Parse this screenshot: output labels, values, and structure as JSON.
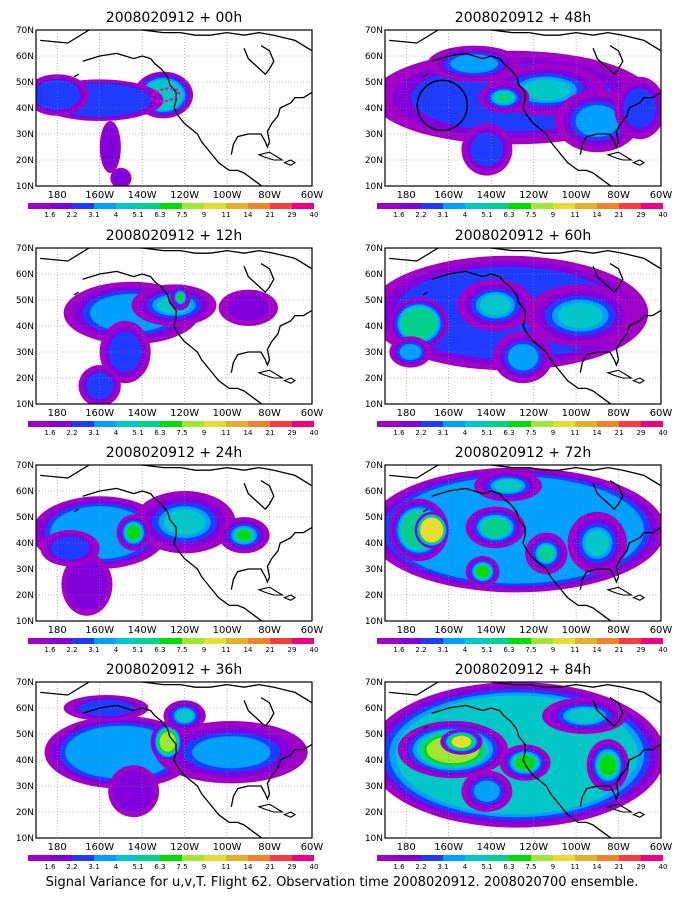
{
  "figure": {
    "caption": "Signal Variance for u,v,T. Flight 62. Observation time 2008020912. 2008020700 ensemble."
  },
  "chart_data": {
    "type": "heatmap",
    "map": {
      "x_ticks": [
        "180",
        "160W",
        "140W",
        "120W",
        "100W",
        "80W",
        "60W"
      ],
      "y_ticks": [
        "70N",
        "60N",
        "50N",
        "40N",
        "30N",
        "20N",
        "10N"
      ],
      "lon_range": [
        170,
        300
      ],
      "lat_range": [
        10,
        70
      ],
      "grid": "dotted"
    },
    "colorbar": {
      "levels": [
        "1.6",
        "2.2",
        "3.1",
        "4",
        "5.1",
        "6.3",
        "7.5",
        "9",
        "11",
        "14",
        "21",
        "29",
        "40"
      ],
      "colors": [
        "#a000c8",
        "#8200dc",
        "#1e3cff",
        "#00a0ff",
        "#00c8c8",
        "#00d28c",
        "#00dc00",
        "#a0e632",
        "#e6dc32",
        "#e6af2d",
        "#f08228",
        "#fa3c3c",
        "#f00082"
      ]
    },
    "panels": [
      {
        "title": "2008020912 + 00h",
        "blobs": [
          [
            230,
            45,
            6,
            6,
            0.95,
            7
          ],
          [
            230,
            45,
            14,
            9,
            0.9,
            4
          ],
          [
            200,
            43,
            30,
            8,
            0.9,
            2
          ],
          [
            180,
            45,
            15,
            8,
            0.85,
            2
          ],
          [
            205,
            25,
            5,
            10,
            0.85,
            1
          ],
          [
            210,
            13,
            5,
            4,
            0.8,
            1
          ]
        ],
        "outline": "ellipse"
      },
      {
        "title": "2008020912 + 12h",
        "blobs": [
          [
            215,
            45,
            32,
            12,
            0.85,
            3
          ],
          [
            235,
            48,
            20,
            8,
            0.8,
            4
          ],
          [
            212,
            30,
            12,
            12,
            0.8,
            2
          ],
          [
            200,
            17,
            10,
            8,
            0.8,
            2
          ],
          [
            270,
            47,
            14,
            7,
            0.7,
            1
          ],
          [
            238,
            51,
            5,
            5,
            0.8,
            6
          ]
        ],
        "outline": ""
      },
      {
        "title": "2008020912 + 24h",
        "blobs": [
          [
            200,
            44,
            32,
            14,
            0.9,
            3
          ],
          [
            240,
            48,
            24,
            12,
            0.8,
            4
          ],
          [
            216,
            44,
            8,
            7,
            0.85,
            6
          ],
          [
            268,
            43,
            12,
            7,
            0.8,
            6
          ],
          [
            194,
            24,
            12,
            12,
            0.8,
            1
          ],
          [
            186,
            38,
            14,
            7,
            0.8,
            2
          ]
        ],
        "outline": ""
      },
      {
        "title": "2008020912 + 36h",
        "blobs": [
          [
            210,
            43,
            36,
            14,
            0.9,
            3
          ],
          [
            262,
            43,
            36,
            12,
            0.8,
            3
          ],
          [
            232,
            47,
            8,
            8,
            0.9,
            7
          ],
          [
            216,
            28,
            12,
            10,
            0.8,
            1
          ],
          [
            240,
            57,
            10,
            6,
            0.8,
            4
          ],
          [
            203,
            60,
            20,
            5,
            0.8,
            2
          ]
        ],
        "outline": ""
      },
      {
        "title": "2008020912 + 48h",
        "blobs": [
          [
            230,
            44,
            66,
            18,
            0.85,
            2
          ],
          [
            246,
            47,
            28,
            10,
            0.8,
            4
          ],
          [
            226,
            44,
            12,
            6,
            0.8,
            5
          ],
          [
            270,
            35,
            20,
            12,
            0.8,
            3
          ],
          [
            218,
            24,
            12,
            10,
            0.8,
            2
          ],
          [
            290,
            40,
            12,
            12,
            0.8,
            2
          ],
          [
            212,
            57,
            22,
            7,
            0.8,
            3
          ]
        ],
        "outline": "circle"
      },
      {
        "title": "2008020912 + 60h",
        "blobs": [
          [
            228,
            45,
            66,
            22,
            0.9,
            2
          ],
          [
            186,
            41,
            14,
            10,
            0.9,
            5
          ],
          [
            262,
            44,
            26,
            12,
            0.8,
            4
          ],
          [
            222,
            48,
            18,
            10,
            0.8,
            4
          ],
          [
            235,
            28,
            14,
            10,
            0.8,
            3
          ],
          [
            182,
            30,
            10,
            6,
            0.8,
            3
          ]
        ],
        "outline": ""
      },
      {
        "title": "2008020912 + 72h",
        "blobs": [
          [
            232,
            45,
            70,
            24,
            0.95,
            3
          ],
          [
            186,
            45,
            14,
            12,
            0.9,
            5
          ],
          [
            192,
            45,
            8,
            7,
            0.95,
            8
          ],
          [
            222,
            46,
            14,
            8,
            0.85,
            5
          ],
          [
            270,
            40,
            14,
            12,
            0.8,
            4
          ],
          [
            216,
            29,
            8,
            6,
            0.85,
            6
          ],
          [
            246,
            36,
            10,
            8,
            0.8,
            5
          ],
          [
            228,
            62,
            16,
            6,
            0.8,
            4
          ]
        ],
        "outline": ""
      },
      {
        "title": "2008020912 + 84h",
        "blobs": [
          [
            232,
            42,
            70,
            28,
            0.95,
            4
          ],
          [
            202,
            44,
            26,
            11,
            0.9,
            7
          ],
          [
            206,
            47,
            10,
            5,
            0.9,
            8
          ],
          [
            236,
            39,
            12,
            7,
            0.85,
            6
          ],
          [
            275,
            38,
            10,
            10,
            0.85,
            6
          ],
          [
            218,
            28,
            12,
            8,
            0.8,
            3
          ],
          [
            264,
            57,
            20,
            7,
            0.8,
            4
          ]
        ],
        "outline": ""
      }
    ]
  }
}
